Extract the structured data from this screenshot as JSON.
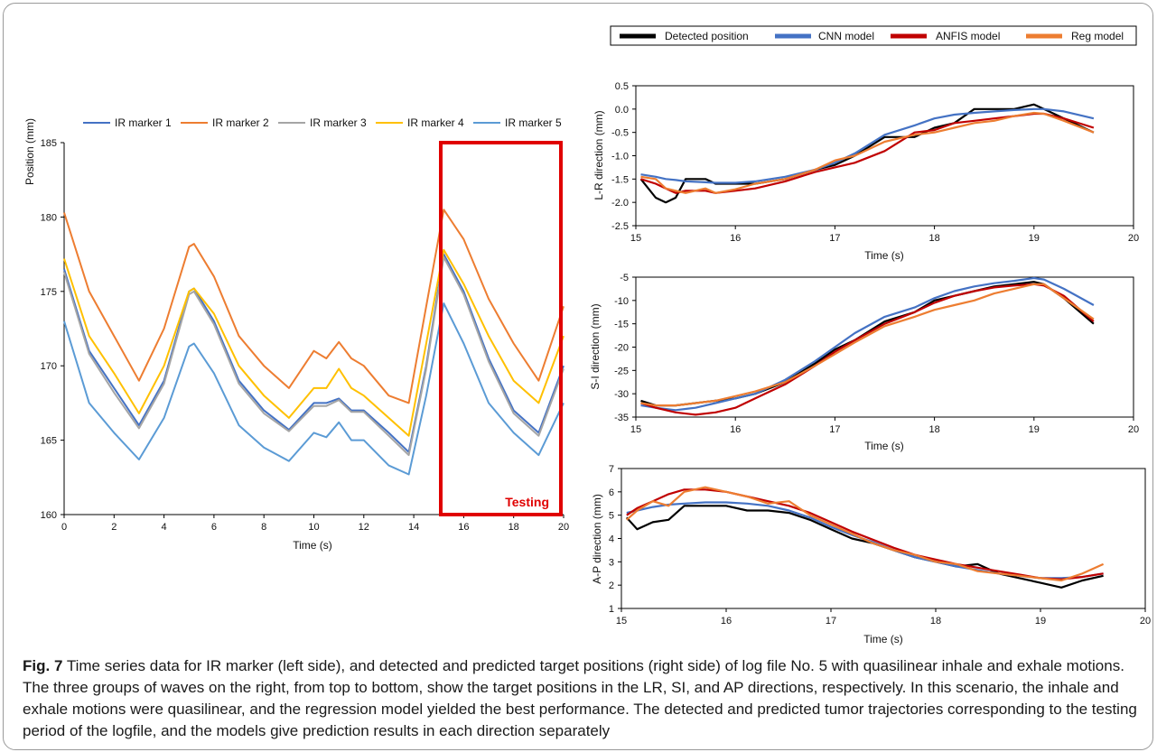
{
  "figure": {
    "caption_label": "Fig. 7",
    "caption_text": "Time series data for IR marker (left side), and detected and predicted target positions (right side) of log file No. 5 with quasilinear inhale and exhale motions. The three groups of waves on the right, from top to bottom, show the target positions in the LR, SI, and AP directions, respectively. In this scenario, the inhale and exhale motions were quasilinear, and the regression model yielded the best performance. The detected and predicted tumor trajectories corresponding to the testing period of the logfile, and the models give prediction results in each direction separately"
  },
  "colors": {
    "ir1": "#4472c4",
    "ir2": "#ed7d31",
    "ir3": "#a5a5a5",
    "ir4": "#ffc000",
    "ir5": "#5b9bd5",
    "detected": "#000000",
    "cnn": "#4472c4",
    "anfis": "#c00000",
    "reg": "#ed7d31",
    "testing_box": "#e00000"
  },
  "chart_data": [
    {
      "type": "line",
      "title": "",
      "xlabel": "Time (s)",
      "ylabel": "Position (mm)",
      "xlim": [
        0,
        20
      ],
      "ylim": [
        160,
        185
      ],
      "xticks": [
        0,
        2,
        4,
        6,
        8,
        10,
        12,
        14,
        16,
        18,
        20
      ],
      "yticks": [
        160,
        165,
        170,
        175,
        180,
        185
      ],
      "legend_position": "top",
      "annotation": {
        "label": "Testing",
        "x_range": [
          15.2,
          20
        ],
        "y_range": [
          160,
          185
        ]
      },
      "x": [
        0,
        1,
        2,
        3,
        4,
        5,
        5.2,
        6,
        7,
        8,
        9,
        10,
        10.5,
        11,
        11.5,
        12,
        13,
        13.8,
        14.5,
        15.2,
        16,
        17,
        18,
        19,
        20
      ],
      "series": [
        {
          "name": "IR marker 1",
          "color_key": "ir1",
          "values": [
            176.5,
            171.0,
            168.5,
            166.0,
            169.0,
            175.0,
            175.2,
            173.0,
            169.0,
            167.0,
            165.7,
            167.5,
            167.5,
            167.8,
            167.0,
            167.0,
            165.5,
            164.2,
            170.0,
            177.5,
            175.0,
            170.5,
            167.0,
            165.5,
            170.0
          ]
        },
        {
          "name": "IR marker 2",
          "color_key": "ir2",
          "values": [
            180.3,
            175.0,
            172.0,
            169.0,
            172.5,
            178.0,
            178.2,
            176.0,
            172.0,
            170.0,
            168.5,
            171.0,
            170.5,
            171.6,
            170.5,
            170.0,
            168.0,
            167.5,
            174.0,
            180.5,
            178.5,
            174.5,
            171.5,
            169.0,
            174.0
          ]
        },
        {
          "name": "IR marker 3",
          "color_key": "ir3",
          "values": [
            176.3,
            170.8,
            168.2,
            165.8,
            168.8,
            174.8,
            175.0,
            172.8,
            168.8,
            166.8,
            165.6,
            167.3,
            167.3,
            167.7,
            166.9,
            166.9,
            165.3,
            164.0,
            169.8,
            177.3,
            174.8,
            170.3,
            166.8,
            165.3,
            169.8
          ]
        },
        {
          "name": "IR marker 4",
          "color_key": "ir4",
          "values": [
            177.2,
            172.0,
            169.5,
            166.8,
            170.0,
            175.0,
            175.2,
            173.5,
            170.0,
            168.0,
            166.5,
            168.5,
            168.5,
            169.8,
            168.5,
            168.0,
            166.5,
            165.3,
            171.5,
            177.8,
            175.5,
            172.0,
            169.0,
            167.5,
            172.0
          ]
        },
        {
          "name": "IR marker 5",
          "color_key": "ir5",
          "values": [
            173.0,
            167.5,
            165.5,
            163.7,
            166.5,
            171.3,
            171.5,
            169.5,
            166.0,
            164.5,
            163.6,
            165.5,
            165.2,
            166.2,
            165.0,
            165.0,
            163.3,
            162.7,
            168.0,
            174.2,
            171.5,
            167.5,
            165.5,
            164.0,
            167.5
          ]
        }
      ]
    },
    {
      "type": "line",
      "title": "",
      "xlabel": "Time (s)",
      "ylabel": "L-R direction (mm)",
      "xlim": [
        15,
        20
      ],
      "ylim": [
        -2.5,
        0.5
      ],
      "xticks": [
        15,
        16,
        17,
        18,
        19,
        20
      ],
      "yticks": [
        0.5,
        0.0,
        -0.5,
        -1.0,
        -1.5,
        -2.0,
        -2.5
      ],
      "ytick_labels": [
        "0.5",
        "0.0",
        "-0.5",
        "-1.0",
        "-1.5",
        "-2.0",
        "-2.5"
      ],
      "legend_position": "top",
      "x": [
        15.05,
        15.2,
        15.3,
        15.4,
        15.5,
        15.7,
        15.8,
        16.0,
        16.2,
        16.5,
        16.8,
        17.0,
        17.2,
        17.5,
        17.8,
        18.0,
        18.2,
        18.4,
        18.6,
        18.8,
        19.0,
        19.1,
        19.3,
        19.6
      ],
      "series": [
        {
          "name": "Detected position",
          "color_key": "detected",
          "values": [
            -1.5,
            -1.9,
            -2.0,
            -1.9,
            -1.5,
            -1.5,
            -1.6,
            -1.6,
            -1.6,
            -1.5,
            -1.3,
            -1.2,
            -1.0,
            -0.6,
            -0.6,
            -0.4,
            -0.3,
            0.0,
            0.0,
            0.0,
            0.1,
            0.0,
            -0.2,
            -0.5
          ]
        },
        {
          "name": "CNN model",
          "color_key": "cnn",
          "values": [
            -1.4,
            -1.45,
            -1.5,
            -1.52,
            -1.55,
            -1.57,
            -1.58,
            -1.58,
            -1.55,
            -1.45,
            -1.3,
            -1.15,
            -0.95,
            -0.55,
            -0.35,
            -0.2,
            -0.12,
            -0.08,
            -0.05,
            -0.02,
            0.0,
            0.0,
            -0.05,
            -0.2
          ]
        },
        {
          "name": "ANFIS model",
          "color_key": "anfis",
          "values": [
            -1.5,
            -1.6,
            -1.7,
            -1.8,
            -1.75,
            -1.75,
            -1.8,
            -1.75,
            -1.7,
            -1.55,
            -1.35,
            -1.25,
            -1.15,
            -0.9,
            -0.5,
            -0.45,
            -0.3,
            -0.25,
            -0.2,
            -0.15,
            -0.1,
            -0.1,
            -0.2,
            -0.4
          ]
        },
        {
          "name": "Reg model",
          "color_key": "reg",
          "values": [
            -1.45,
            -1.5,
            -1.7,
            -1.75,
            -1.8,
            -1.7,
            -1.8,
            -1.72,
            -1.6,
            -1.5,
            -1.3,
            -1.1,
            -1.0,
            -0.7,
            -0.55,
            -0.5,
            -0.4,
            -0.3,
            -0.25,
            -0.15,
            -0.08,
            -0.1,
            -0.25,
            -0.5
          ]
        }
      ]
    },
    {
      "type": "line",
      "title": "",
      "xlabel": "Time (s)",
      "ylabel": "S-I direction (mm)",
      "xlim": [
        15,
        20
      ],
      "ylim": [
        -35,
        -5
      ],
      "xticks": [
        15,
        16,
        17,
        18,
        19,
        20
      ],
      "yticks": [
        -5,
        -10,
        -15,
        -20,
        -25,
        -30,
        -35
      ],
      "legend_position": "top",
      "x": [
        15.05,
        15.2,
        15.4,
        15.6,
        15.8,
        16.0,
        16.2,
        16.5,
        16.8,
        17.0,
        17.2,
        17.5,
        17.8,
        18.0,
        18.2,
        18.4,
        18.6,
        18.8,
        19.0,
        19.1,
        19.3,
        19.6
      ],
      "series": [
        {
          "name": "Detected position",
          "color_key": "detected",
          "values": [
            -31.5,
            -32.5,
            -32.5,
            -32.0,
            -31.5,
            -31.0,
            -30.0,
            -27.5,
            -23.5,
            -20.5,
            -18.5,
            -14.5,
            -12.5,
            -10.0,
            -9.0,
            -8.0,
            -7.0,
            -6.5,
            -6.0,
            -6.5,
            -9.5,
            -15.0
          ]
        },
        {
          "name": "CNN model",
          "color_key": "cnn",
          "values": [
            -32.5,
            -33.0,
            -33.5,
            -33.0,
            -32.0,
            -31.0,
            -30.0,
            -27.0,
            -23.0,
            -20.0,
            -17.0,
            -13.5,
            -11.5,
            -9.5,
            -8.0,
            -7.0,
            -6.3,
            -5.8,
            -5.2,
            -5.5,
            -7.5,
            -11.0
          ]
        },
        {
          "name": "ANFIS model",
          "color_key": "anfis",
          "values": [
            -32.0,
            -33.0,
            -34.0,
            -34.5,
            -34.0,
            -33.0,
            -31.0,
            -28.0,
            -24.0,
            -21.0,
            -18.5,
            -15.0,
            -12.5,
            -10.5,
            -9.0,
            -8.0,
            -7.2,
            -6.8,
            -6.5,
            -6.8,
            -9.0,
            -14.5
          ]
        },
        {
          "name": "Reg model",
          "color_key": "reg",
          "values": [
            -32.0,
            -32.5,
            -32.5,
            -32.0,
            -31.5,
            -30.5,
            -29.5,
            -27.5,
            -24.0,
            -21.5,
            -19.0,
            -15.5,
            -13.5,
            -12.0,
            -11.0,
            -10.0,
            -8.5,
            -7.5,
            -6.5,
            -6.5,
            -9.5,
            -14.0
          ]
        }
      ]
    },
    {
      "type": "line",
      "title": "",
      "xlabel": "Time (s)",
      "ylabel": "A-P direction (mm)",
      "xlim": [
        15,
        20
      ],
      "ylim": [
        1,
        7
      ],
      "xticks": [
        15,
        16,
        17,
        18,
        19,
        20
      ],
      "yticks": [
        1,
        2,
        3,
        4,
        5,
        6,
        7
      ],
      "legend_position": "top",
      "x": [
        15.05,
        15.15,
        15.3,
        15.45,
        15.6,
        15.8,
        16.0,
        16.2,
        16.4,
        16.6,
        16.8,
        17.0,
        17.2,
        17.4,
        17.6,
        17.8,
        18.0,
        18.2,
        18.4,
        18.6,
        18.8,
        19.0,
        19.2,
        19.4,
        19.6
      ],
      "series": [
        {
          "name": "Detected position",
          "color_key": "detected",
          "values": [
            4.9,
            4.4,
            4.7,
            4.8,
            5.4,
            5.4,
            5.4,
            5.2,
            5.2,
            5.1,
            4.8,
            4.4,
            4.0,
            3.8,
            3.5,
            3.2,
            3.0,
            2.8,
            2.9,
            2.5,
            2.3,
            2.1,
            1.9,
            2.2,
            2.4
          ]
        },
        {
          "name": "CNN model",
          "color_key": "cnn",
          "values": [
            5.1,
            5.2,
            5.35,
            5.45,
            5.5,
            5.55,
            5.55,
            5.5,
            5.4,
            5.2,
            4.9,
            4.5,
            4.15,
            3.85,
            3.5,
            3.2,
            3.0,
            2.8,
            2.65,
            2.5,
            2.4,
            2.3,
            2.3,
            2.35,
            2.5
          ]
        },
        {
          "name": "ANFIS model",
          "color_key": "anfis",
          "values": [
            5.0,
            5.3,
            5.6,
            5.9,
            6.1,
            6.1,
            6.0,
            5.8,
            5.6,
            5.4,
            5.1,
            4.7,
            4.3,
            3.95,
            3.6,
            3.3,
            3.1,
            2.9,
            2.75,
            2.6,
            2.45,
            2.3,
            2.25,
            2.35,
            2.5
          ]
        },
        {
          "name": "Reg model",
          "color_key": "reg",
          "values": [
            4.8,
            5.2,
            5.6,
            5.4,
            6.0,
            6.2,
            6.0,
            5.8,
            5.5,
            5.6,
            5.0,
            4.6,
            4.2,
            3.8,
            3.5,
            3.3,
            3.0,
            2.9,
            2.6,
            2.5,
            2.4,
            2.3,
            2.2,
            2.5,
            2.9
          ]
        }
      ]
    }
  ]
}
